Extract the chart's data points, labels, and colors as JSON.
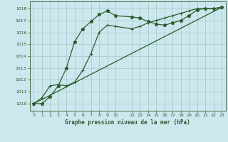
{
  "title": "Graphe pression niveau de la mer (hPa)",
  "bg_color": "#cce8ee",
  "grid_color": "#aacccc",
  "line_color": "#2d5a2d",
  "xlim": [
    -0.5,
    23.5
  ],
  "ylim": [
    1009.4,
    1018.6
  ],
  "yticks": [
    1010,
    1011,
    1012,
    1013,
    1014,
    1015,
    1016,
    1017,
    1018
  ],
  "xticks": [
    0,
    1,
    2,
    3,
    4,
    5,
    6,
    7,
    8,
    9,
    10,
    12,
    13,
    14,
    15,
    16,
    17,
    18,
    19,
    20,
    21,
    22,
    23
  ],
  "series1_x": [
    0,
    1,
    2,
    3,
    4,
    5,
    6,
    7,
    8,
    9,
    10,
    12,
    13,
    14,
    15,
    16,
    17,
    18,
    19,
    20,
    21,
    22,
    23
  ],
  "series1_y": [
    1010.0,
    1010.0,
    1010.6,
    1011.5,
    1013.0,
    1015.2,
    1016.3,
    1016.9,
    1017.5,
    1017.8,
    1017.4,
    1017.3,
    1017.2,
    1016.9,
    1016.7,
    1016.6,
    1016.8,
    1017.0,
    1017.4,
    1017.9,
    1018.0,
    1018.0,
    1018.1
  ],
  "series2_x": [
    0,
    1,
    2,
    3,
    4,
    5,
    6,
    7,
    8,
    9,
    10,
    12,
    13,
    14,
    15,
    16,
    17,
    18,
    19,
    20,
    21,
    22,
    23
  ],
  "series2_y": [
    1010.0,
    1010.5,
    1011.5,
    1011.6,
    1011.5,
    1011.8,
    1012.8,
    1014.2,
    1016.0,
    1016.6,
    1016.5,
    1016.3,
    1016.5,
    1016.8,
    1017.0,
    1017.2,
    1017.4,
    1017.6,
    1017.8,
    1018.0,
    1018.0,
    1018.0,
    1018.1
  ],
  "series3_x": [
    0,
    23
  ],
  "series3_y": [
    1010.0,
    1018.1
  ]
}
